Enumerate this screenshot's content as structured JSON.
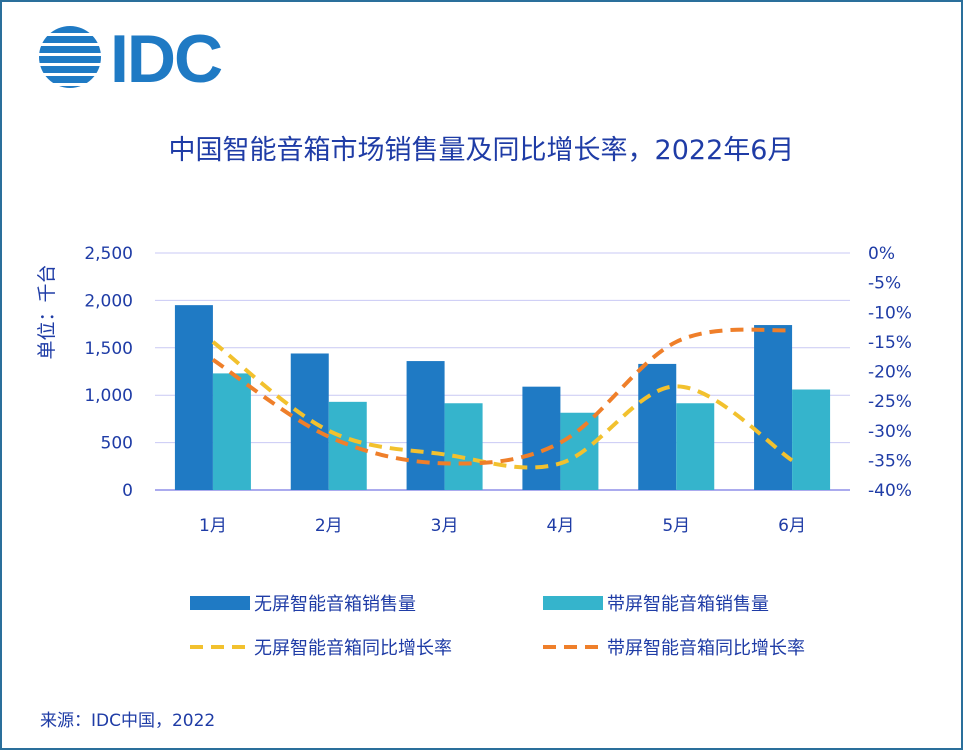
{
  "logo": {
    "text": "IDC",
    "color": "#1f7ac4"
  },
  "chart_data": {
    "type": "bar",
    "title": "中国智能音箱市场销售量及同比增长率，2022年6月",
    "ylabel": "单位：千台",
    "categories": [
      "1月",
      "2月",
      "3月",
      "4月",
      "5月",
      "6月"
    ],
    "ylim": [
      0,
      2500
    ],
    "yticks": [
      "2,500",
      "2,000",
      "1,500",
      "1,000",
      "500",
      "0"
    ],
    "y2lim": [
      -40,
      0
    ],
    "y2ticks": [
      "0%",
      "-5%",
      "-10%",
      "-15%",
      "-20%",
      "-25%",
      "-30%",
      "-35%",
      "-40%"
    ],
    "grid": true,
    "legend_position": "bottom",
    "series": [
      {
        "name": "无屏智能音箱销售量",
        "kind": "bar",
        "axis": "left",
        "color": "#1f7ac4",
        "values": [
          1950,
          1440,
          1360,
          1090,
          1330,
          1740
        ]
      },
      {
        "name": "带屏智能音箱销售量",
        "kind": "bar",
        "axis": "left",
        "color": "#35b4cc",
        "values": [
          1230,
          930,
          915,
          815,
          915,
          1060
        ]
      },
      {
        "name": "无屏智能音箱同比增长率",
        "kind": "line",
        "axis": "right",
        "color": "#f2c12e",
        "values": [
          -15,
          -30,
          -34,
          -35.5,
          -22.5,
          -35
        ]
      },
      {
        "name": "带屏智能音箱同比增长率",
        "kind": "line",
        "axis": "right",
        "color": "#ef7f2a",
        "values": [
          -18,
          -31,
          -35.5,
          -32,
          -15,
          -13
        ]
      }
    ]
  },
  "source": "来源：IDC中国，2022"
}
